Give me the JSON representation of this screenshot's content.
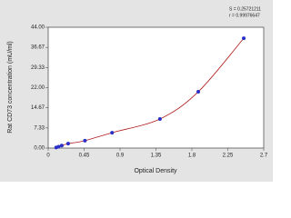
{
  "chart_data": {
    "type": "scatter",
    "x_label": "Optical Density",
    "y_label": "Rat CD73 concentration (mU/ml)",
    "annotations": [
      "S = 0.25721211",
      "r = 0.99976647"
    ],
    "series": [
      {
        "color": "#2a2fc8",
        "curve_color": "#b01c1c",
        "x": [
          0.1,
          0.13,
          0.17,
          0.25,
          0.46,
          0.8,
          1.4,
          1.88,
          2.45
        ],
        "values": [
          0.2,
          0.5,
          0.9,
          1.6,
          2.7,
          5.6,
          10.6,
          20.5,
          40
        ]
      }
    ],
    "xlim": [
      0,
      2.7
    ],
    "xticks": [
      0,
      0.45,
      0.9,
      1.35,
      1.8,
      2.25,
      2.7
    ],
    "ylim": [
      0,
      44
    ],
    "yticks": [
      {
        "value": 0,
        "label": "0.00"
      },
      7.33,
      14.67,
      {
        "value": 22,
        "label": "22.00"
      },
      29.33,
      36.67,
      {
        "value": 44,
        "label": "44.00"
      }
    ]
  }
}
